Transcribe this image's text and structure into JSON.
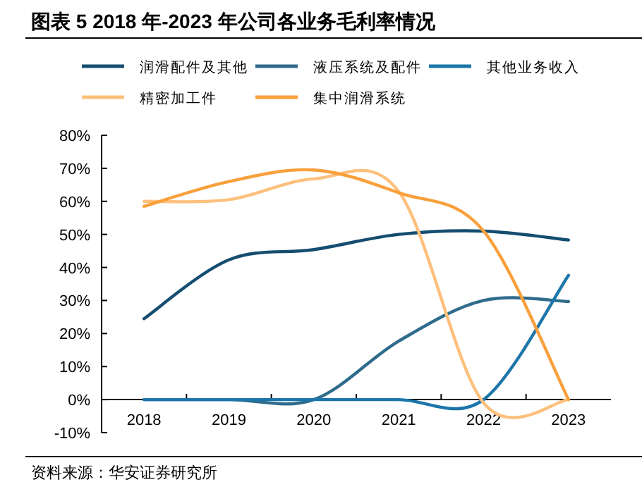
{
  "chart_data": {
    "type": "line",
    "title": "图表 5 2018 年-2023 年公司各业务毛利率情况",
    "categories": [
      "2018",
      "2019",
      "2020",
      "2021",
      "2022",
      "2023"
    ],
    "series": [
      {
        "name": "润滑配件及其他",
        "color": "#154d70",
        "values": [
          24.5,
          42.3,
          45.4,
          50,
          51,
          48.3
        ]
      },
      {
        "name": "液压系统及配件",
        "color": "#2f6b8c",
        "values": [
          0,
          0,
          0,
          17.7,
          30,
          29.7
        ]
      },
      {
        "name": "其他业务收入",
        "color": "#1c76aa",
        "values": [
          0,
          0,
          0,
          0,
          0,
          37.6
        ]
      },
      {
        "name": "精密加工件",
        "color": "#fdc07c",
        "values": [
          60,
          60.5,
          66.8,
          63,
          -1,
          0
        ]
      },
      {
        "name": "集中润滑系统",
        "color": "#f9a03c",
        "values": [
          58.5,
          66,
          69.5,
          62.6,
          51,
          0
        ]
      }
    ],
    "ylim": [
      -10,
      80
    ],
    "yticks": [
      {
        "value": -10,
        "label": "-10%"
      },
      {
        "value": 0,
        "label": "0%"
      },
      {
        "value": 10,
        "label": "10%"
      },
      {
        "value": 20,
        "label": "20%"
      },
      {
        "value": 30,
        "label": "30%"
      },
      {
        "value": 40,
        "label": "40%"
      },
      {
        "value": 50,
        "label": "50%"
      },
      {
        "value": 60,
        "label": "60%"
      },
      {
        "value": 70,
        "label": "70%"
      },
      {
        "value": 80,
        "label": "80%"
      }
    ],
    "legend": "top",
    "annotations": [
      "资料来源：华安证券研究所"
    ]
  }
}
